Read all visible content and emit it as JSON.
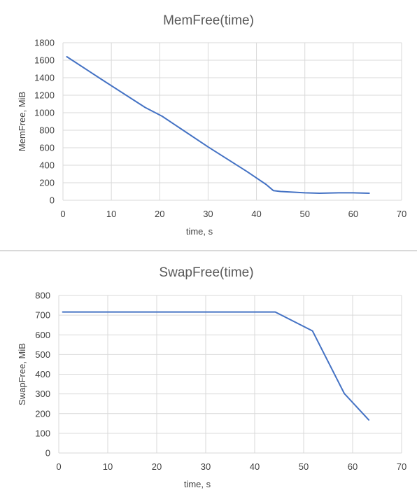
{
  "chart_data": [
    {
      "type": "line",
      "title": "MemFree(time)",
      "xlabel": "time, s",
      "ylabel": "MemFree, MiB",
      "xlim": [
        0,
        70
      ],
      "ylim": [
        0,
        1800
      ],
      "xticks": [
        0,
        10,
        20,
        30,
        40,
        50,
        60,
        70
      ],
      "yticks": [
        0,
        200,
        400,
        600,
        800,
        1000,
        1200,
        1400,
        1600,
        1800
      ],
      "grid": true,
      "legend": "none",
      "series_color": "#4472c4",
      "x": [
        0.8,
        8,
        17,
        20.5,
        30,
        38,
        42,
        43.5,
        45,
        50,
        53,
        57,
        60,
        63.3
      ],
      "y": [
        1640,
        1380,
        1060,
        960,
        610,
        330,
        180,
        110,
        100,
        85,
        80,
        85,
        85,
        80
      ]
    },
    {
      "type": "line",
      "title": "SwapFree(time)",
      "xlabel": "time, s",
      "ylabel": "SwapFree, MiB",
      "xlim": [
        0,
        70
      ],
      "ylim": [
        0,
        800
      ],
      "xticks": [
        0,
        10,
        20,
        30,
        40,
        50,
        60,
        70
      ],
      "yticks": [
        0,
        100,
        200,
        300,
        400,
        500,
        600,
        700,
        800
      ],
      "grid": true,
      "legend": "none",
      "series_color": "#4472c4",
      "x": [
        0.8,
        10,
        20,
        30,
        40,
        44.2,
        51.8,
        58.3,
        63.3
      ],
      "y": [
        716,
        716,
        716,
        716,
        716,
        716,
        620,
        302,
        168
      ]
    }
  ]
}
